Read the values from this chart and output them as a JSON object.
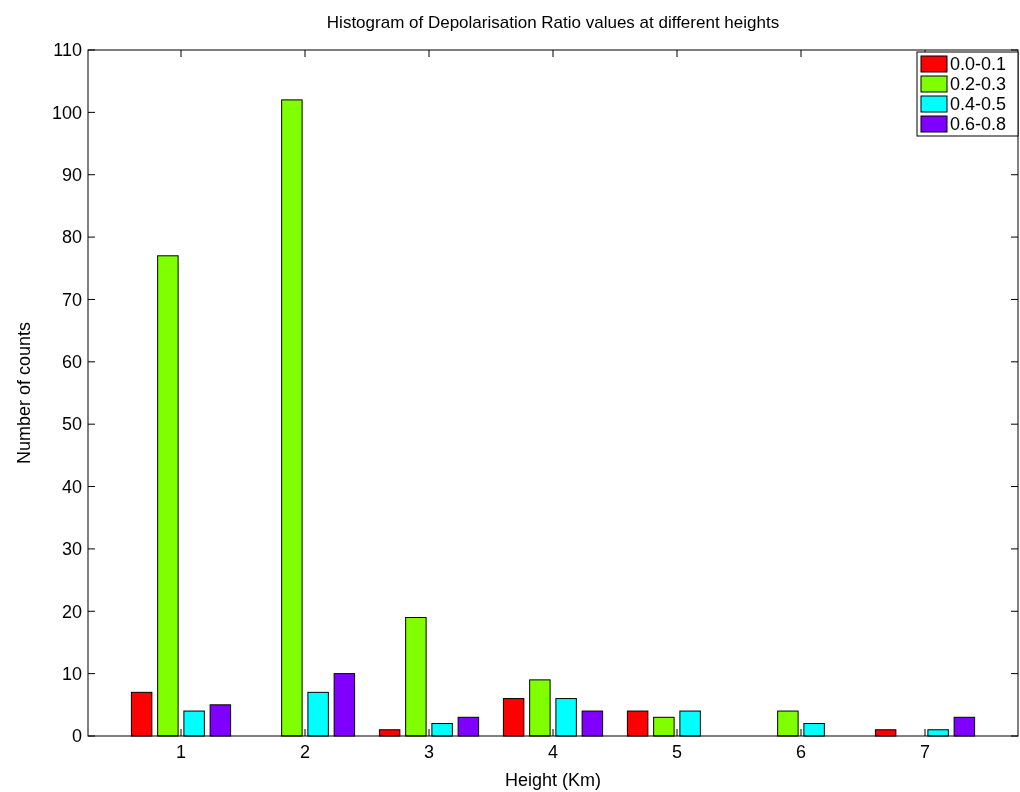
{
  "chart_data": {
    "type": "bar",
    "title": "Histogram of Depolarisation Ratio values at different heights",
    "xlabel": "Height (Km)",
    "ylabel": "Number of counts",
    "categories": [
      "1",
      "2",
      "3",
      "4",
      "5",
      "6",
      "7"
    ],
    "series": [
      {
        "name": "0.0-0.1",
        "color": "#ff0000",
        "values": [
          7,
          0,
          1,
          6,
          4,
          0,
          1
        ]
      },
      {
        "name": "0.2-0.3",
        "color": "#80ff00",
        "values": [
          77,
          102,
          19,
          9,
          3,
          4,
          0
        ]
      },
      {
        "name": "0.4-0.5",
        "color": "#00ffff",
        "values": [
          4,
          7,
          2,
          6,
          4,
          2,
          1
        ]
      },
      {
        "name": "0.6-0.8",
        "color": "#8000ff",
        "values": [
          5,
          10,
          3,
          4,
          0,
          0,
          3
        ]
      }
    ],
    "ylim": [
      0,
      110
    ],
    "yticks": [
      0,
      10,
      20,
      30,
      40,
      50,
      60,
      70,
      80,
      90,
      100,
      110
    ],
    "grid": false,
    "legend": "top right"
  }
}
